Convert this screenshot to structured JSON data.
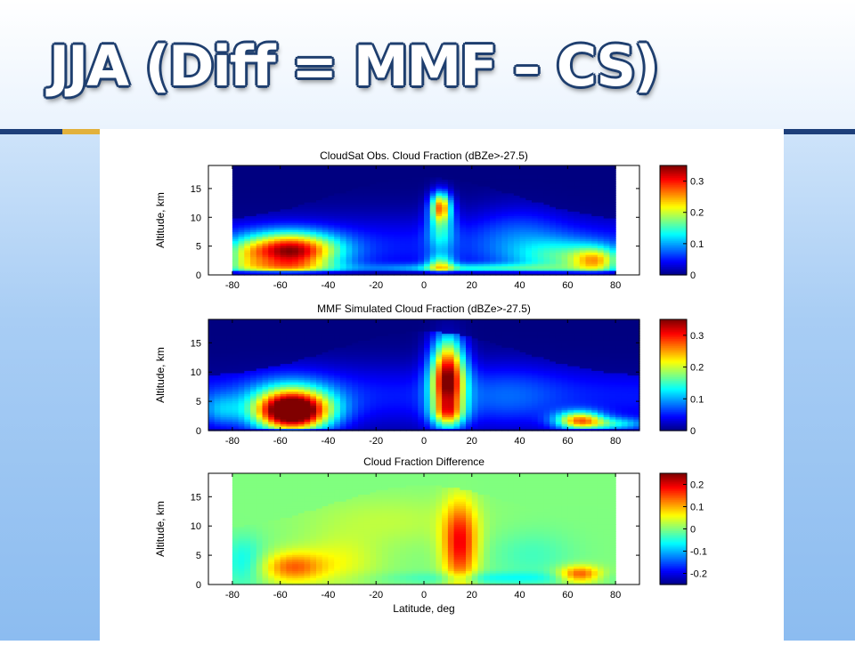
{
  "slide": {
    "title": "JJA (Diff = MMF – CS)"
  },
  "chart_data": [
    {
      "type": "heatmap",
      "title": "CloudSat Obs. Cloud Fraction (dBZe>-27.5)",
      "xlabel": "",
      "ylabel": "Altitude, km",
      "xlim": [
        -90,
        90
      ],
      "ylim": [
        0,
        19
      ],
      "xticks": [
        -80,
        -60,
        -40,
        -20,
        0,
        20,
        40,
        60,
        80
      ],
      "yticks": [
        0,
        5,
        10,
        15
      ],
      "data_xrange": [
        -80,
        80
      ],
      "colorbar": {
        "range": [
          0,
          0.35
        ],
        "ticks": [
          "0",
          "0.1",
          "0.2",
          "0.3"
        ],
        "tick_values": [
          0,
          0.1,
          0.2,
          0.3
        ],
        "colormap": "jet"
      },
      "field": "obs"
    },
    {
      "type": "heatmap",
      "title": "MMF Simulated Cloud Fraction (dBZe>-27.5)",
      "xlabel": "",
      "ylabel": "Altitude, km",
      "xlim": [
        -90,
        90
      ],
      "ylim": [
        0,
        19
      ],
      "xticks": [
        -80,
        -60,
        -40,
        -20,
        0,
        20,
        40,
        60,
        80
      ],
      "yticks": [
        0,
        5,
        10,
        15
      ],
      "data_xrange": [
        -90,
        90
      ],
      "colorbar": {
        "range": [
          0,
          0.35
        ],
        "ticks": [
          "0",
          "0.1",
          "0.2",
          "0.3"
        ],
        "tick_values": [
          0,
          0.1,
          0.2,
          0.3
        ],
        "colormap": "jet"
      },
      "field": "mmf"
    },
    {
      "type": "heatmap",
      "title": "Cloud Fraction Difference",
      "xlabel": "Latitude, deg",
      "ylabel": "Altitude, km",
      "xlim": [
        -90,
        90
      ],
      "ylim": [
        0,
        19
      ],
      "xticks": [
        -80,
        -60,
        -40,
        -20,
        0,
        20,
        40,
        60,
        80
      ],
      "yticks": [
        0,
        5,
        10,
        15
      ],
      "data_xrange": [
        -80,
        80
      ],
      "colorbar": {
        "range": [
          -0.25,
          0.25
        ],
        "ticks": [
          "-0.2",
          "-0.1",
          "0",
          "0.1",
          "0.2"
        ],
        "tick_values": [
          -0.2,
          -0.1,
          0,
          0.1,
          0.2
        ],
        "colormap": "jet"
      },
      "field": "diff"
    }
  ]
}
